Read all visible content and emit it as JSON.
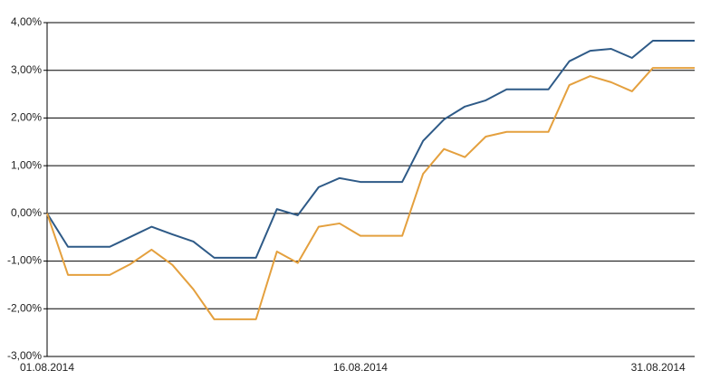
{
  "chart_data": {
    "type": "line",
    "categories": [
      "01.08.2014",
      null,
      null,
      null,
      null,
      null,
      null,
      null,
      null,
      null,
      null,
      null,
      null,
      null,
      null,
      "16.08.2014",
      null,
      null,
      null,
      null,
      null,
      null,
      null,
      null,
      null,
      null,
      null,
      null,
      null,
      null,
      "31.08.2014",
      null
    ],
    "series": [
      {
        "color": "#2e5a87",
        "values": [
          0,
          -0.7,
          -0.7,
          -0.7,
          -0.49,
          -0.28,
          -0.44,
          -0.59,
          -0.93,
          -0.93,
          -0.93,
          0.09,
          -0.04,
          0.55,
          0.74,
          0.66,
          0.66,
          0.66,
          1.52,
          1.97,
          2.24,
          2.37,
          2.6,
          2.6,
          2.6,
          3.19,
          3.41,
          3.45,
          3.26,
          3.62,
          3.62,
          3.62
        ]
      },
      {
        "color": "#e4a03e",
        "values": [
          0,
          -1.29,
          -1.29,
          -1.29,
          -1.06,
          -0.76,
          -1.08,
          -1.59,
          -2.22,
          -2.22,
          -2.22,
          -0.8,
          -1.04,
          -0.28,
          -0.21,
          -0.47,
          -0.47,
          -0.47,
          0.83,
          1.35,
          1.18,
          1.61,
          1.71,
          1.71,
          1.71,
          2.69,
          2.88,
          2.75,
          2.56,
          3.05,
          3.05,
          3.05
        ]
      }
    ],
    "ylim": [
      -3,
      4
    ],
    "yticks": [
      {
        "value": -3,
        "label": "-3,00%"
      },
      {
        "value": -2,
        "label": "-2,00%"
      },
      {
        "value": -1,
        "label": "-1,00%"
      },
      {
        "value": 0,
        "label": "0,00%"
      },
      {
        "value": 1,
        "label": "1,00%"
      },
      {
        "value": 2,
        "label": "2,00%"
      },
      {
        "value": 3,
        "label": "3,00%"
      },
      {
        "value": 4,
        "label": "4,00%"
      }
    ],
    "grid": true
  }
}
